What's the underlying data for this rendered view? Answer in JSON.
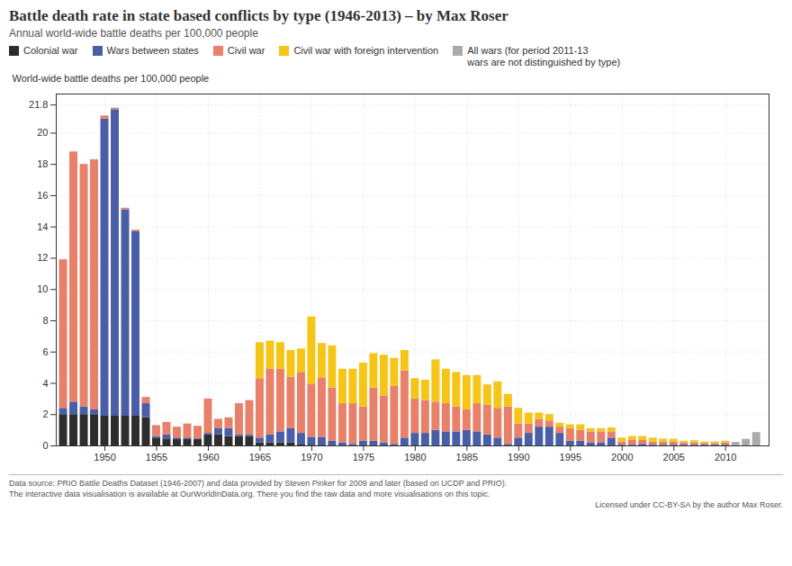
{
  "chart_data": {
    "type": "bar",
    "stacked": true,
    "title": "Battle death rate in state based conflicts by type (1946-2013) – by Max Roser",
    "subtitle": "Annual world-wide battle deaths per 100,000 people",
    "ylabel": "World-wide battle deaths per 100,000 people",
    "annotations": [
      "Data source:  PRIO Battle Deaths Dataset (1946-2007) and data provided by Steven Pinker for 2009 and later (based on UCDP and PRIO).",
      "The interactive data visualisation is available at OurWorldInData.org. There you find the raw data and more visualisations on this topic.",
      "Licensed under CC-BY-SA by the author Max Roser."
    ],
    "x": [
      1946,
      1947,
      1948,
      1949,
      1950,
      1951,
      1952,
      1953,
      1954,
      1955,
      1956,
      1957,
      1958,
      1959,
      1960,
      1961,
      1962,
      1963,
      1964,
      1965,
      1966,
      1967,
      1968,
      1969,
      1970,
      1971,
      1972,
      1973,
      1974,
      1975,
      1976,
      1977,
      1978,
      1979,
      1980,
      1981,
      1982,
      1983,
      1984,
      1985,
      1986,
      1987,
      1988,
      1989,
      1990,
      1991,
      1992,
      1993,
      1994,
      1995,
      1996,
      1997,
      1998,
      1999,
      2000,
      2001,
      2002,
      2003,
      2004,
      2005,
      2006,
      2007,
      2008,
      2009,
      2010,
      2011,
      2012,
      2013
    ],
    "series": [
      {
        "name": "Colonial war",
        "color": "#2d2d2d",
        "values": [
          2.0,
          2.0,
          2.0,
          2.0,
          1.9,
          1.9,
          1.9,
          1.9,
          1.8,
          0.5,
          0.4,
          0.4,
          0.4,
          0.4,
          0.7,
          0.7,
          0.6,
          0.6,
          0.6,
          0.2,
          0.2,
          0.2,
          0.2,
          0.1,
          0.05,
          0.05,
          0.0,
          0.0,
          0.0,
          0.0,
          0.0,
          0.0,
          0.0,
          0.0,
          0.0,
          0.0,
          0.0,
          0.0,
          0.0,
          0.0,
          0.0,
          0.0,
          0.0,
          0.0,
          0.0,
          0.0,
          0.0,
          0.0,
          0.0,
          0.0,
          0.0,
          0.0,
          0.0,
          0.0,
          0.0,
          0.0,
          0.0,
          0.0,
          0.0,
          0.0,
          0.0,
          0.0,
          0.0,
          0.0,
          0.0,
          0.0,
          0.0,
          0.0
        ]
      },
      {
        "name": "Wars between states",
        "color": "#4a5ea8",
        "values": [
          0.4,
          0.8,
          0.5,
          0.3,
          19.0,
          19.6,
          13.2,
          11.8,
          0.9,
          0.1,
          0.3,
          0.1,
          0.1,
          0.05,
          0.1,
          0.4,
          0.5,
          0.1,
          0.1,
          0.3,
          0.5,
          0.7,
          0.9,
          0.7,
          0.5,
          0.5,
          0.3,
          0.2,
          0.1,
          0.3,
          0.3,
          0.2,
          0.1,
          0.5,
          0.8,
          0.8,
          1.0,
          0.9,
          0.9,
          1.0,
          0.9,
          0.7,
          0.5,
          0.1,
          0.5,
          0.8,
          1.2,
          1.2,
          0.8,
          0.3,
          0.3,
          0.2,
          0.2,
          0.5,
          0.05,
          0.05,
          0.1,
          0.05,
          0.05,
          0.05,
          0.05,
          0.05,
          0.05,
          0.05,
          0.05,
          0.0,
          0.0,
          0.0
        ]
      },
      {
        "name": "Civil war",
        "color": "#e8806a",
        "values": [
          9.5,
          16.0,
          15.5,
          16.0,
          0.2,
          0.1,
          0.1,
          0.1,
          0.4,
          0.7,
          0.8,
          0.7,
          0.9,
          0.8,
          2.2,
          0.6,
          0.7,
          2.0,
          2.2,
          3.8,
          4.2,
          4.0,
          3.3,
          3.9,
          3.4,
          3.8,
          3.4,
          2.5,
          2.6,
          2.2,
          3.4,
          3.0,
          3.7,
          4.3,
          2.2,
          2.1,
          1.8,
          1.8,
          1.6,
          1.3,
          1.8,
          1.9,
          1.9,
          2.4,
          0.9,
          0.6,
          0.5,
          0.4,
          0.4,
          0.8,
          0.7,
          0.7,
          0.7,
          0.4,
          0.2,
          0.3,
          0.25,
          0.2,
          0.2,
          0.2,
          0.15,
          0.15,
          0.1,
          0.1,
          0.15,
          0.0,
          0.0,
          0.0
        ]
      },
      {
        "name": "Civil war with foreign intervention",
        "color": "#f5c518",
        "values": [
          0.0,
          0.0,
          0.0,
          0.0,
          0.0,
          0.0,
          0.0,
          0.0,
          0.0,
          0.0,
          0.0,
          0.0,
          0.0,
          0.0,
          0.0,
          0.0,
          0.0,
          0.0,
          0.0,
          2.3,
          1.8,
          1.7,
          1.7,
          1.5,
          4.3,
          2.2,
          2.7,
          2.2,
          2.2,
          2.8,
          2.2,
          2.6,
          1.8,
          1.3,
          1.3,
          1.3,
          2.7,
          2.2,
          2.2,
          2.2,
          1.8,
          1.3,
          1.7,
          0.8,
          1.0,
          0.7,
          0.4,
          0.4,
          0.25,
          0.25,
          0.35,
          0.2,
          0.2,
          0.25,
          0.25,
          0.25,
          0.25,
          0.25,
          0.18,
          0.18,
          0.1,
          0.13,
          0.1,
          0.1,
          0.1,
          0.0,
          0.0,
          0.0
        ]
      },
      {
        "name": "All wars (for period 2011-13\nwars are not distinguished by type)",
        "color": "#aaaaaa",
        "values": [
          0.0,
          0.0,
          0.0,
          0.0,
          0.0,
          0.0,
          0.0,
          0.0,
          0.0,
          0.0,
          0.0,
          0.0,
          0.0,
          0.0,
          0.0,
          0.0,
          0.0,
          0.0,
          0.0,
          0.0,
          0.0,
          0.0,
          0.0,
          0.0,
          0.0,
          0.0,
          0.0,
          0.0,
          0.0,
          0.0,
          0.0,
          0.0,
          0.0,
          0.0,
          0.0,
          0.0,
          0.0,
          0.0,
          0.0,
          0.0,
          0.0,
          0.0,
          0.0,
          0.0,
          0.0,
          0.0,
          0.0,
          0.0,
          0.0,
          0.0,
          0.0,
          0.0,
          0.0,
          0.0,
          0.0,
          0.0,
          0.0,
          0.0,
          0.0,
          0.0,
          0.0,
          0.0,
          0.0,
          0.0,
          0.0,
          0.22,
          0.42,
          0.85
        ]
      }
    ],
    "xlim": [
      1945.3,
      2014.2
    ],
    "xticks": [
      1950,
      1955,
      1960,
      1965,
      1970,
      1975,
      1980,
      1985,
      1990,
      1995,
      2000,
      2005,
      2010
    ],
    "ylim": [
      0,
      22.5
    ],
    "yticks": [
      0,
      2,
      4,
      6,
      8,
      10,
      12,
      14,
      16,
      18,
      20,
      21.8
    ],
    "grid": true,
    "legend": "top"
  }
}
